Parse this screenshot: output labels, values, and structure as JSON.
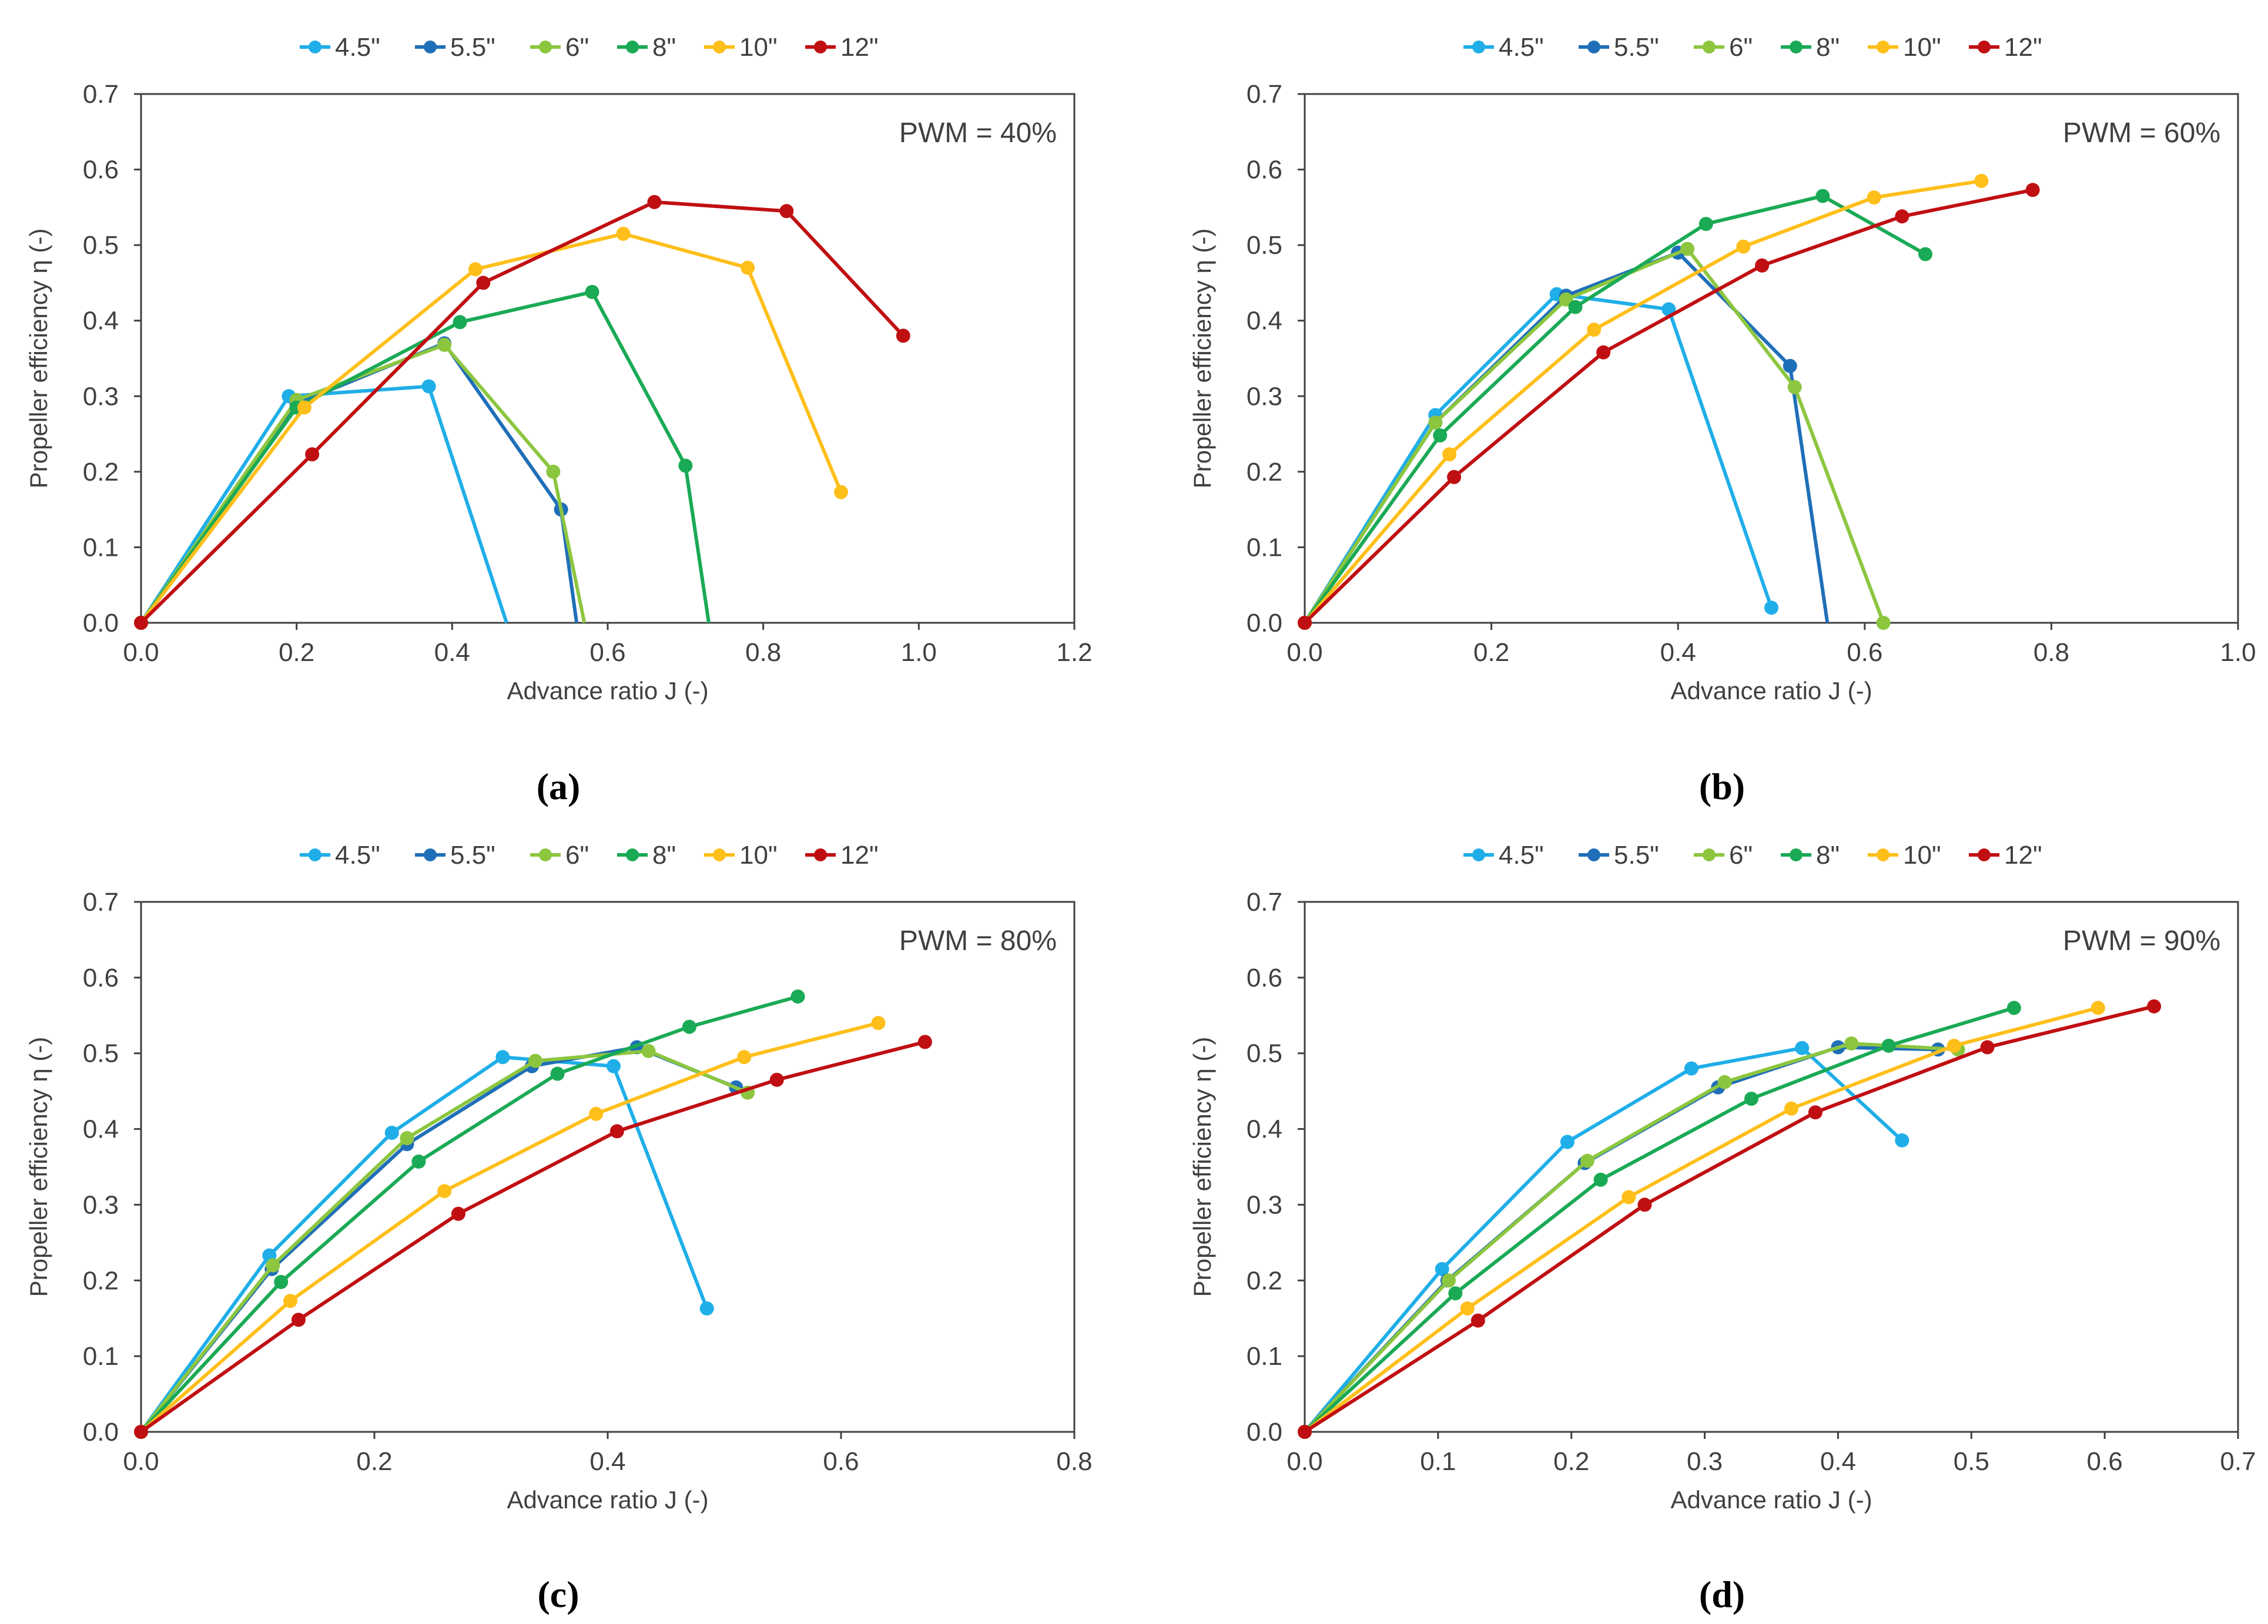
{
  "figure": {
    "colors": {
      "4.5\"": "#1FAEE8",
      "5.5\"": "#1F6FB8",
      "6\"": "#8CC63F",
      "8\"": "#1AAA55",
      "10\"": "#FFBF1A",
      "12\"": "#C00F12"
    }
  },
  "chart_data": [
    {
      "type": "line",
      "panel_label": "(a)",
      "annotation": "PWM = 40%",
      "xlabel": "Advance ratio J (-)",
      "ylabel": "Propeller efficiency η (-)",
      "xlim": [
        0,
        1.2
      ],
      "ylim": [
        0,
        0.7
      ],
      "xticks": [
        "0.0",
        "0.2",
        "0.4",
        "0.6",
        "0.8",
        "1.0",
        "1.2"
      ],
      "yticks": [
        "0.0",
        "0.1",
        "0.2",
        "0.3",
        "0.4",
        "0.5",
        "0.6",
        "0.7"
      ],
      "legend": "top",
      "series": [
        {
          "name": "4.5\"",
          "x": [
            0,
            0.19,
            0.37,
            0.47
          ],
          "y": [
            0,
            0.3,
            0.313,
            0
          ],
          "markers": [
            true,
            true,
            true,
            false
          ]
        },
        {
          "name": "5.5\"",
          "x": [
            0,
            0.2,
            0.39,
            0.54,
            0.56
          ],
          "y": [
            0,
            0.29,
            0.37,
            0.15,
            0
          ],
          "markers": [
            true,
            true,
            true,
            true,
            false
          ]
        },
        {
          "name": "6\"",
          "x": [
            0,
            0.2,
            0.39,
            0.53,
            0.57
          ],
          "y": [
            0,
            0.295,
            0.368,
            0.2,
            0
          ],
          "markers": [
            true,
            true,
            true,
            true,
            false
          ]
        },
        {
          "name": "8\"",
          "x": [
            0,
            0.2,
            0.41,
            0.58,
            0.7,
            0.73
          ],
          "y": [
            0,
            0.285,
            0.398,
            0.438,
            0.208,
            0
          ],
          "markers": [
            true,
            true,
            true,
            true,
            true,
            false
          ]
        },
        {
          "name": "10\"",
          "x": [
            0,
            0.21,
            0.43,
            0.62,
            0.78,
            0.9
          ],
          "y": [
            0,
            0.285,
            0.468,
            0.515,
            0.47,
            0.173
          ],
          "markers": [
            true,
            true,
            true,
            true,
            true,
            true
          ]
        },
        {
          "name": "12\"",
          "x": [
            0,
            0.22,
            0.44,
            0.66,
            0.83,
            0.98
          ],
          "y": [
            0,
            0.223,
            0.45,
            0.557,
            0.545,
            0.38
          ],
          "markers": [
            true,
            true,
            true,
            true,
            true,
            true
          ]
        }
      ]
    },
    {
      "type": "line",
      "panel_label": "(b)",
      "annotation": "PWM = 60%",
      "xlabel": "Advance ratio J (-)",
      "ylabel": "Propeller efficiency η (-)",
      "xlim": [
        0,
        1.0
      ],
      "ylim": [
        0,
        0.7
      ],
      "xticks": [
        "0.0",
        "0.2",
        "0.4",
        "0.6",
        "0.8",
        "1.0"
      ],
      "yticks": [
        "0.0",
        "0.1",
        "0.2",
        "0.3",
        "0.4",
        "0.5",
        "0.6",
        "0.7"
      ],
      "legend": "top",
      "series": [
        {
          "name": "4.5\"",
          "x": [
            0,
            0.14,
            0.27,
            0.39,
            0.5
          ],
          "y": [
            0,
            0.275,
            0.435,
            0.415,
            0.02
          ],
          "markers": [
            true,
            true,
            true,
            true,
            true
          ]
        },
        {
          "name": "5.5\"",
          "x": [
            0,
            0.14,
            0.28,
            0.4,
            0.52,
            0.56
          ],
          "y": [
            0,
            0.265,
            0.433,
            0.49,
            0.34,
            0
          ],
          "markers": [
            true,
            true,
            true,
            true,
            true,
            false
          ]
        },
        {
          "name": "6\"",
          "x": [
            0,
            0.14,
            0.28,
            0.41,
            0.525,
            0.62
          ],
          "y": [
            0,
            0.265,
            0.428,
            0.495,
            0.312,
            0
          ],
          "markers": [
            true,
            true,
            true,
            true,
            true,
            true
          ]
        },
        {
          "name": "8\"",
          "x": [
            0,
            0.145,
            0.29,
            0.43,
            0.555,
            0.665
          ],
          "y": [
            0,
            0.248,
            0.418,
            0.528,
            0.565,
            0.488
          ],
          "markers": [
            true,
            true,
            true,
            true,
            true,
            true
          ]
        },
        {
          "name": "10\"",
          "x": [
            0,
            0.155,
            0.31,
            0.47,
            0.61,
            0.725
          ],
          "y": [
            0,
            0.223,
            0.388,
            0.498,
            0.563,
            0.585
          ],
          "markers": [
            true,
            true,
            true,
            true,
            true,
            true
          ]
        },
        {
          "name": "12\"",
          "x": [
            0,
            0.16,
            0.32,
            0.49,
            0.64,
            0.78
          ],
          "y": [
            0,
            0.193,
            0.358,
            0.473,
            0.538,
            0.573
          ],
          "markers": [
            true,
            true,
            true,
            true,
            true,
            true
          ]
        }
      ]
    },
    {
      "type": "line",
      "panel_label": "(c)",
      "annotation": "PWM = 80%",
      "xlabel": "Advance ratio J (-)",
      "ylabel": "Propeller efficiency η (-)",
      "xlim": [
        0,
        0.8
      ],
      "ylim": [
        0,
        0.7
      ],
      "xticks": [
        "0.0",
        "0.2",
        "0.4",
        "0.6",
        "0.8"
      ],
      "yticks": [
        "0.0",
        "0.1",
        "0.2",
        "0.3",
        "0.4",
        "0.5",
        "0.6",
        "0.7"
      ],
      "legend": "top",
      "series": [
        {
          "name": "4.5\"",
          "x": [
            0,
            0.11,
            0.215,
            0.31,
            0.405,
            0.485
          ],
          "y": [
            0,
            0.233,
            0.395,
            0.495,
            0.483,
            0.163
          ],
          "markers": [
            true,
            true,
            true,
            true,
            true,
            true
          ]
        },
        {
          "name": "5.5\"",
          "x": [
            0,
            0.112,
            0.228,
            0.335,
            0.425,
            0.51
          ],
          "y": [
            0,
            0.215,
            0.38,
            0.483,
            0.508,
            0.455
          ],
          "markers": [
            true,
            true,
            true,
            true,
            true,
            true
          ]
        },
        {
          "name": "6\"",
          "x": [
            0,
            0.113,
            0.228,
            0.338,
            0.435,
            0.52
          ],
          "y": [
            0,
            0.22,
            0.388,
            0.49,
            0.503,
            0.448
          ],
          "markers": [
            true,
            true,
            true,
            true,
            true,
            true
          ]
        },
        {
          "name": "8\"",
          "x": [
            0,
            0.12,
            0.238,
            0.357,
            0.47,
            0.563
          ],
          "y": [
            0,
            0.198,
            0.357,
            0.473,
            0.535,
            0.575
          ],
          "markers": [
            true,
            true,
            true,
            true,
            true,
            true
          ]
        },
        {
          "name": "10\"",
          "x": [
            0,
            0.128,
            0.26,
            0.39,
            0.517,
            0.632
          ],
          "y": [
            0,
            0.173,
            0.318,
            0.42,
            0.495,
            0.54
          ],
          "markers": [
            true,
            true,
            true,
            true,
            true,
            true
          ]
        },
        {
          "name": "12\"",
          "x": [
            0,
            0.135,
            0.272,
            0.408,
            0.545,
            0.672
          ],
          "y": [
            0,
            0.148,
            0.288,
            0.397,
            0.465,
            0.515
          ],
          "markers": [
            true,
            true,
            true,
            true,
            true,
            true
          ]
        }
      ]
    },
    {
      "type": "line",
      "panel_label": "(d)",
      "annotation": "PWM = 90%",
      "xlabel": "Advance ratio J (-)",
      "ylabel": "Propeller efficiency η (-)",
      "xlim": [
        0,
        0.7
      ],
      "ylim": [
        0,
        0.7
      ],
      "xticks": [
        "0.0",
        "0.1",
        "0.2",
        "0.3",
        "0.4",
        "0.5",
        "0.6",
        "0.7"
      ],
      "yticks": [
        "0.0",
        "0.1",
        "0.2",
        "0.3",
        "0.4",
        "0.5",
        "0.6",
        "0.7"
      ],
      "legend": "top",
      "series": [
        {
          "name": "4.5\"",
          "x": [
            0,
            0.103,
            0.197,
            0.29,
            0.373,
            0.448
          ],
          "y": [
            0,
            0.215,
            0.383,
            0.48,
            0.507,
            0.385
          ],
          "markers": [
            true,
            true,
            true,
            true,
            true,
            true
          ]
        },
        {
          "name": "5.5\"",
          "x": [
            0,
            0.107,
            0.21,
            0.31,
            0.4,
            0.475
          ],
          "y": [
            0,
            0.2,
            0.355,
            0.455,
            0.508,
            0.505
          ],
          "markers": [
            true,
            true,
            true,
            true,
            true,
            true
          ]
        },
        {
          "name": "6\"",
          "x": [
            0,
            0.108,
            0.212,
            0.315,
            0.41,
            0.49
          ],
          "y": [
            0,
            0.2,
            0.358,
            0.462,
            0.513,
            0.505
          ],
          "markers": [
            true,
            true,
            true,
            true,
            true,
            true
          ]
        },
        {
          "name": "8\"",
          "x": [
            0,
            0.113,
            0.222,
            0.335,
            0.438,
            0.532
          ],
          "y": [
            0,
            0.183,
            0.333,
            0.44,
            0.51,
            0.56
          ],
          "markers": [
            true,
            true,
            true,
            true,
            true,
            true
          ]
        },
        {
          "name": "10\"",
          "x": [
            0,
            0.122,
            0.243,
            0.365,
            0.487,
            0.595
          ],
          "y": [
            0,
            0.163,
            0.31,
            0.427,
            0.51,
            0.56
          ],
          "markers": [
            true,
            true,
            true,
            true,
            true,
            true
          ]
        },
        {
          "name": "12\"",
          "x": [
            0,
            0.13,
            0.255,
            0.383,
            0.512,
            0.637
          ],
          "y": [
            0,
            0.147,
            0.3,
            0.422,
            0.508,
            0.562
          ],
          "markers": [
            true,
            true,
            true,
            true,
            true,
            true
          ]
        }
      ]
    }
  ]
}
